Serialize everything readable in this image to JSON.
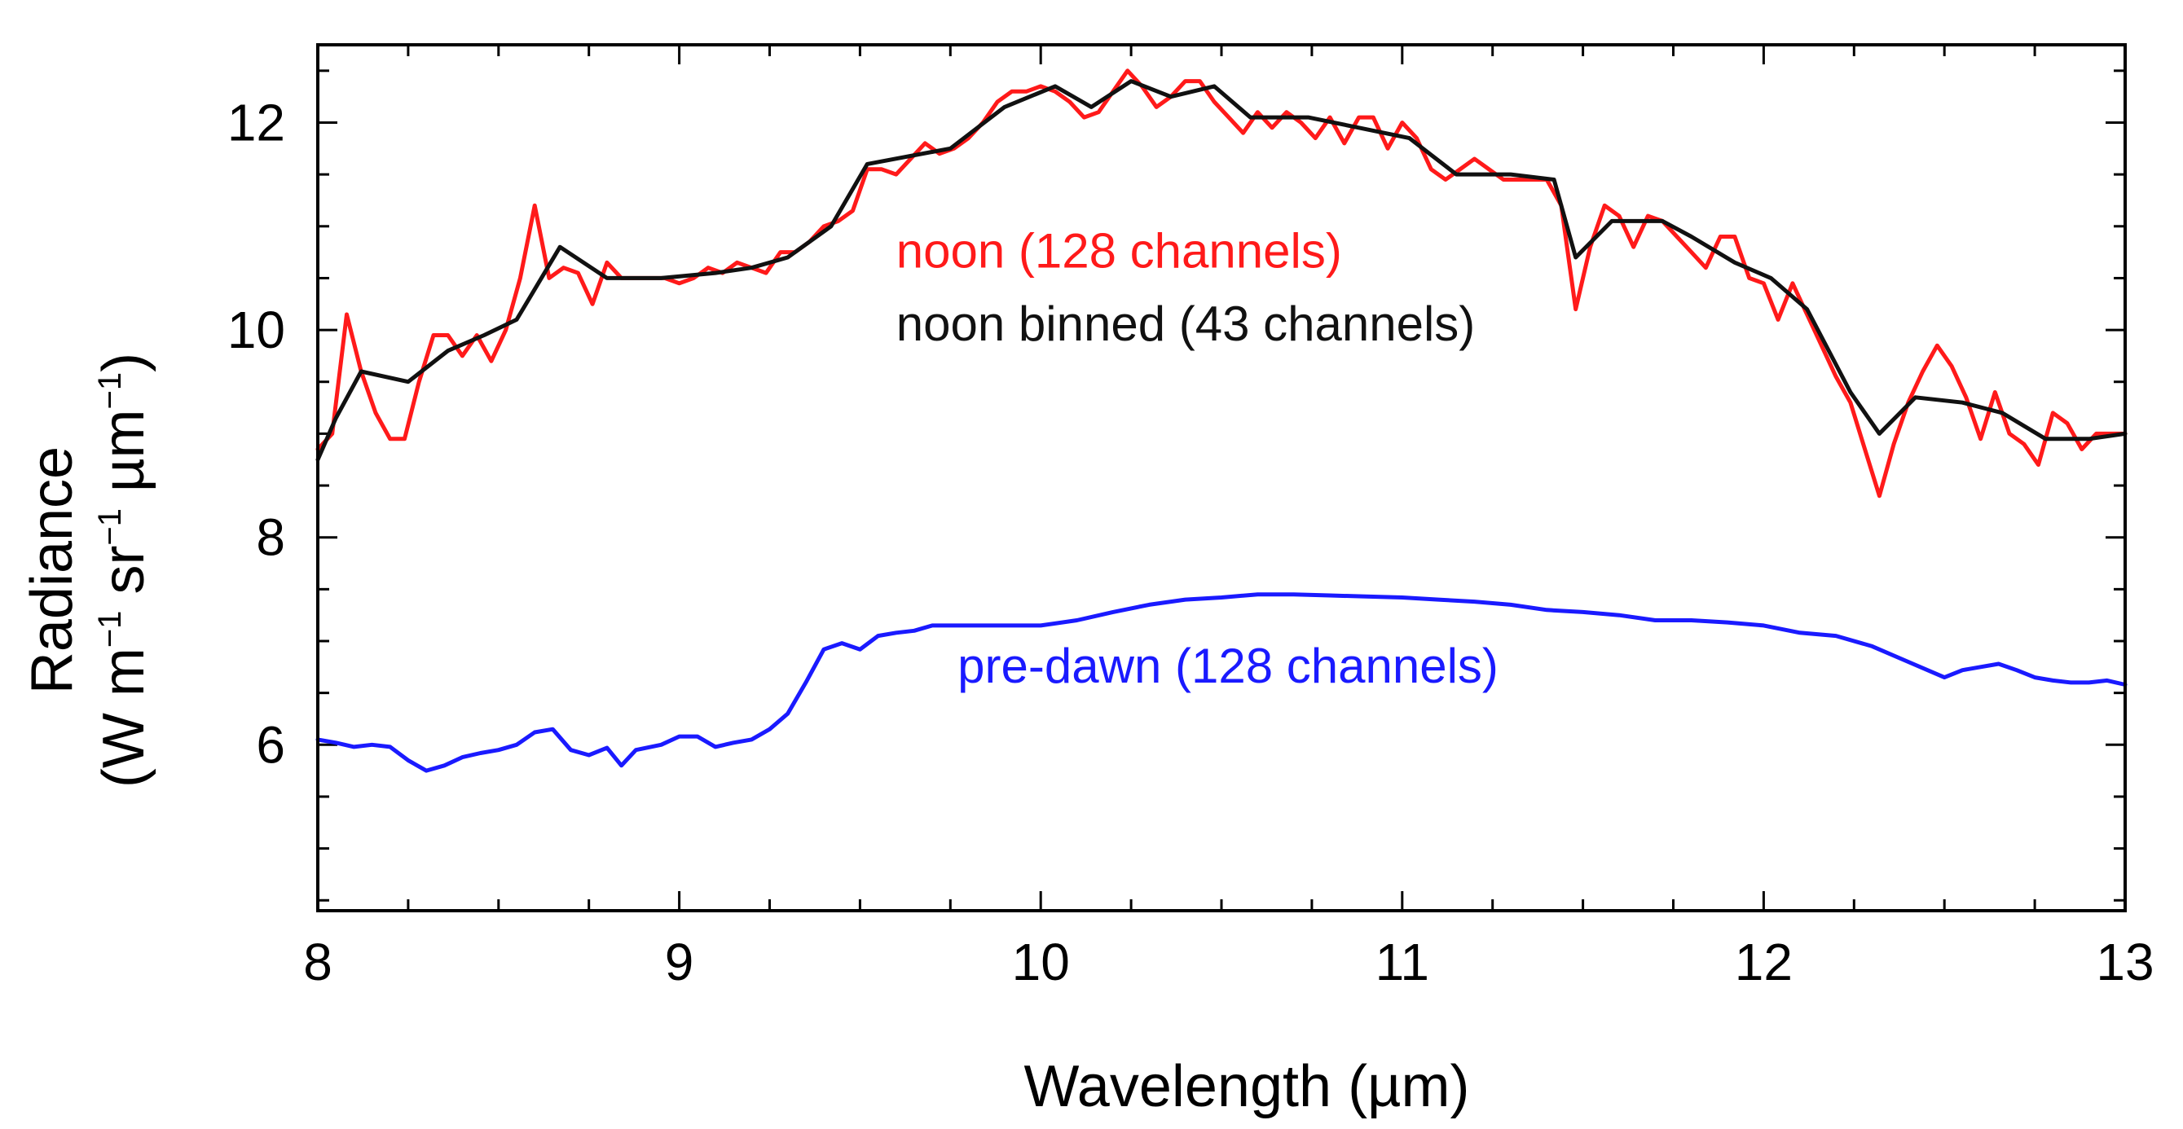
{
  "chart_data": {
    "type": "line",
    "xlabel": "Wavelength (µm)",
    "ylabel_line1": "Radiance",
    "ylabel_line2": {
      "open": "(W m",
      "sup1": "−1",
      "mid1": " sr",
      "sup2": "−1",
      "mid2": " µm",
      "sup3": "−1",
      "close": ")"
    },
    "xlim": [
      8,
      13
    ],
    "ylim": [
      4.4,
      12.75
    ],
    "x_ticks": [
      8,
      9,
      10,
      11,
      12,
      13
    ],
    "y_ticks": [
      6,
      8,
      10,
      12
    ],
    "x_minor_step": 0.25,
    "y_minor_step": 0.5,
    "colors": {
      "noon": "#ff1a1a",
      "binned": "#111111",
      "predawn": "#1a1aff",
      "axis": "#000000"
    },
    "series": [
      {
        "id": "noon",
        "name": "noon (128 channels)",
        "points": [
          [
            8.0,
            8.85
          ],
          [
            8.04,
            9.0
          ],
          [
            8.08,
            10.15
          ],
          [
            8.12,
            9.6
          ],
          [
            8.16,
            9.2
          ],
          [
            8.2,
            8.95
          ],
          [
            8.24,
            8.95
          ],
          [
            8.28,
            9.5
          ],
          [
            8.32,
            9.95
          ],
          [
            8.36,
            9.95
          ],
          [
            8.4,
            9.75
          ],
          [
            8.44,
            9.95
          ],
          [
            8.48,
            9.7
          ],
          [
            8.52,
            10.0
          ],
          [
            8.56,
            10.5
          ],
          [
            8.6,
            11.2
          ],
          [
            8.64,
            10.5
          ],
          [
            8.68,
            10.6
          ],
          [
            8.72,
            10.55
          ],
          [
            8.76,
            10.25
          ],
          [
            8.8,
            10.65
          ],
          [
            8.84,
            10.5
          ],
          [
            8.88,
            10.5
          ],
          [
            8.92,
            10.5
          ],
          [
            8.96,
            10.5
          ],
          [
            9.0,
            10.45
          ],
          [
            9.04,
            10.5
          ],
          [
            9.08,
            10.6
          ],
          [
            9.12,
            10.55
          ],
          [
            9.16,
            10.65
          ],
          [
            9.2,
            10.6
          ],
          [
            9.24,
            10.55
          ],
          [
            9.28,
            10.75
          ],
          [
            9.32,
            10.75
          ],
          [
            9.36,
            10.85
          ],
          [
            9.4,
            11.0
          ],
          [
            9.44,
            11.05
          ],
          [
            9.48,
            11.15
          ],
          [
            9.52,
            11.55
          ],
          [
            9.56,
            11.55
          ],
          [
            9.6,
            11.5
          ],
          [
            9.64,
            11.65
          ],
          [
            9.68,
            11.8
          ],
          [
            9.72,
            11.7
          ],
          [
            9.76,
            11.75
          ],
          [
            9.8,
            11.85
          ],
          [
            9.84,
            12.0
          ],
          [
            9.88,
            12.2
          ],
          [
            9.92,
            12.3
          ],
          [
            9.96,
            12.3
          ],
          [
            10.0,
            12.35
          ],
          [
            10.04,
            12.3
          ],
          [
            10.08,
            12.2
          ],
          [
            10.12,
            12.05
          ],
          [
            10.16,
            12.1
          ],
          [
            10.2,
            12.3
          ],
          [
            10.24,
            12.5
          ],
          [
            10.28,
            12.35
          ],
          [
            10.32,
            12.15
          ],
          [
            10.36,
            12.25
          ],
          [
            10.4,
            12.4
          ],
          [
            10.44,
            12.4
          ],
          [
            10.48,
            12.2
          ],
          [
            10.52,
            12.05
          ],
          [
            10.56,
            11.9
          ],
          [
            10.6,
            12.1
          ],
          [
            10.64,
            11.95
          ],
          [
            10.68,
            12.1
          ],
          [
            10.72,
            12.0
          ],
          [
            10.76,
            11.85
          ],
          [
            10.8,
            12.05
          ],
          [
            10.84,
            11.8
          ],
          [
            10.88,
            12.05
          ],
          [
            10.92,
            12.05
          ],
          [
            10.96,
            11.75
          ],
          [
            11.0,
            12.0
          ],
          [
            11.04,
            11.85
          ],
          [
            11.08,
            11.55
          ],
          [
            11.12,
            11.45
          ],
          [
            11.16,
            11.55
          ],
          [
            11.2,
            11.65
          ],
          [
            11.24,
            11.55
          ],
          [
            11.28,
            11.45
          ],
          [
            11.32,
            11.45
          ],
          [
            11.36,
            11.45
          ],
          [
            11.4,
            11.45
          ],
          [
            11.44,
            11.2
          ],
          [
            11.48,
            10.2
          ],
          [
            11.52,
            10.8
          ],
          [
            11.56,
            11.2
          ],
          [
            11.6,
            11.1
          ],
          [
            11.64,
            10.8
          ],
          [
            11.68,
            11.1
          ],
          [
            11.72,
            11.05
          ],
          [
            11.76,
            10.9
          ],
          [
            11.8,
            10.75
          ],
          [
            11.84,
            10.6
          ],
          [
            11.88,
            10.9
          ],
          [
            11.92,
            10.9
          ],
          [
            11.96,
            10.5
          ],
          [
            12.0,
            10.45
          ],
          [
            12.04,
            10.1
          ],
          [
            12.08,
            10.45
          ],
          [
            12.12,
            10.15
          ],
          [
            12.16,
            9.85
          ],
          [
            12.2,
            9.55
          ],
          [
            12.24,
            9.3
          ],
          [
            12.28,
            8.85
          ],
          [
            12.32,
            8.4
          ],
          [
            12.36,
            8.9
          ],
          [
            12.4,
            9.3
          ],
          [
            12.44,
            9.6
          ],
          [
            12.48,
            9.85
          ],
          [
            12.52,
            9.65
          ],
          [
            12.56,
            9.35
          ],
          [
            12.6,
            8.95
          ],
          [
            12.64,
            9.4
          ],
          [
            12.68,
            9.0
          ],
          [
            12.72,
            8.9
          ],
          [
            12.76,
            8.7
          ],
          [
            12.8,
            9.2
          ],
          [
            12.84,
            9.1
          ],
          [
            12.88,
            8.85
          ],
          [
            12.92,
            9.0
          ],
          [
            12.96,
            9.0
          ],
          [
            13.0,
            9.0
          ]
        ]
      },
      {
        "id": "binned",
        "name": "noon binned (43 channels)",
        "points": [
          [
            8.0,
            8.75
          ],
          [
            8.05,
            9.15
          ],
          [
            8.12,
            9.6
          ],
          [
            8.25,
            9.5
          ],
          [
            8.36,
            9.8
          ],
          [
            8.46,
            9.95
          ],
          [
            8.55,
            10.1
          ],
          [
            8.67,
            10.8
          ],
          [
            8.8,
            10.5
          ],
          [
            8.95,
            10.5
          ],
          [
            9.1,
            10.55
          ],
          [
            9.2,
            10.6
          ],
          [
            9.3,
            10.7
          ],
          [
            9.42,
            11.0
          ],
          [
            9.52,
            11.6
          ],
          [
            9.75,
            11.75
          ],
          [
            9.9,
            12.15
          ],
          [
            10.04,
            12.35
          ],
          [
            10.14,
            12.15
          ],
          [
            10.25,
            12.4
          ],
          [
            10.36,
            12.25
          ],
          [
            10.48,
            12.35
          ],
          [
            10.58,
            12.05
          ],
          [
            10.74,
            12.05
          ],
          [
            10.88,
            11.95
          ],
          [
            11.02,
            11.85
          ],
          [
            11.15,
            11.5
          ],
          [
            11.3,
            11.5
          ],
          [
            11.42,
            11.45
          ],
          [
            11.48,
            10.7
          ],
          [
            11.58,
            11.05
          ],
          [
            11.72,
            11.05
          ],
          [
            11.8,
            10.9
          ],
          [
            11.92,
            10.65
          ],
          [
            12.02,
            10.5
          ],
          [
            12.12,
            10.2
          ],
          [
            12.24,
            9.4
          ],
          [
            12.32,
            9.0
          ],
          [
            12.42,
            9.35
          ],
          [
            12.55,
            9.3
          ],
          [
            12.66,
            9.2
          ],
          [
            12.78,
            8.95
          ],
          [
            12.9,
            8.95
          ],
          [
            13.0,
            9.0
          ]
        ]
      },
      {
        "id": "predawn",
        "name": "pre-dawn (128 channels)",
        "points": [
          [
            8.0,
            6.05
          ],
          [
            8.05,
            6.02
          ],
          [
            8.1,
            5.98
          ],
          [
            8.15,
            6.0
          ],
          [
            8.2,
            5.98
          ],
          [
            8.25,
            5.85
          ],
          [
            8.3,
            5.75
          ],
          [
            8.35,
            5.8
          ],
          [
            8.4,
            5.88
          ],
          [
            8.45,
            5.92
          ],
          [
            8.5,
            5.95
          ],
          [
            8.55,
            6.0
          ],
          [
            8.6,
            6.12
          ],
          [
            8.65,
            6.15
          ],
          [
            8.7,
            5.95
          ],
          [
            8.75,
            5.9
          ],
          [
            8.8,
            5.97
          ],
          [
            8.84,
            5.8
          ],
          [
            8.88,
            5.95
          ],
          [
            8.95,
            6.0
          ],
          [
            9.0,
            6.08
          ],
          [
            9.05,
            6.08
          ],
          [
            9.1,
            5.98
          ],
          [
            9.15,
            6.02
          ],
          [
            9.2,
            6.05
          ],
          [
            9.25,
            6.15
          ],
          [
            9.3,
            6.3
          ],
          [
            9.35,
            6.6
          ],
          [
            9.4,
            6.92
          ],
          [
            9.45,
            6.98
          ],
          [
            9.5,
            6.92
          ],
          [
            9.55,
            7.05
          ],
          [
            9.6,
            7.08
          ],
          [
            9.65,
            7.1
          ],
          [
            9.7,
            7.15
          ],
          [
            9.8,
            7.15
          ],
          [
            9.9,
            7.15
          ],
          [
            10.0,
            7.15
          ],
          [
            10.1,
            7.2
          ],
          [
            10.2,
            7.28
          ],
          [
            10.3,
            7.35
          ],
          [
            10.4,
            7.4
          ],
          [
            10.5,
            7.42
          ],
          [
            10.6,
            7.45
          ],
          [
            10.7,
            7.45
          ],
          [
            10.8,
            7.44
          ],
          [
            10.9,
            7.43
          ],
          [
            11.0,
            7.42
          ],
          [
            11.1,
            7.4
          ],
          [
            11.2,
            7.38
          ],
          [
            11.3,
            7.35
          ],
          [
            11.4,
            7.3
          ],
          [
            11.5,
            7.28
          ],
          [
            11.6,
            7.25
          ],
          [
            11.7,
            7.2
          ],
          [
            11.8,
            7.2
          ],
          [
            11.9,
            7.18
          ],
          [
            12.0,
            7.15
          ],
          [
            12.1,
            7.08
          ],
          [
            12.2,
            7.05
          ],
          [
            12.3,
            6.95
          ],
          [
            12.4,
            6.8
          ],
          [
            12.5,
            6.65
          ],
          [
            12.55,
            6.72
          ],
          [
            12.6,
            6.75
          ],
          [
            12.65,
            6.78
          ],
          [
            12.7,
            6.72
          ],
          [
            12.75,
            6.65
          ],
          [
            12.8,
            6.62
          ],
          [
            12.85,
            6.6
          ],
          [
            12.9,
            6.6
          ],
          [
            12.95,
            6.62
          ],
          [
            13.0,
            6.58
          ]
        ]
      }
    ],
    "annotations": [
      {
        "id": "noon",
        "text": "noon (128 channels)",
        "color": "#ff1a1a",
        "x": 9.6,
        "y": 10.6
      },
      {
        "id": "binned",
        "text": "noon binned (43 channels)",
        "color": "#111111",
        "x": 9.6,
        "y": 9.9
      },
      {
        "id": "predawn",
        "text": "pre-dawn (128 channels)",
        "color": "#1a1aff",
        "x": 9.77,
        "y": 6.6
      }
    ]
  }
}
